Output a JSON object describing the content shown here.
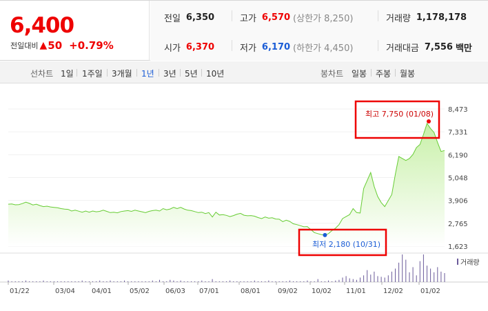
{
  "summary": {
    "current_price": "6,400",
    "prev_compare_label": "전일대비",
    "change_arrow": "▲",
    "change_value": "50",
    "change_pct": "+0.79%",
    "prev_close": {
      "label": "전일",
      "value": "6,350"
    },
    "high": {
      "label": "고가",
      "value": "6,570",
      "sub": "(상한가 8,250)"
    },
    "volume": {
      "label": "거래량",
      "value": "1,178,178"
    },
    "open": {
      "label": "시가",
      "value": "6,370"
    },
    "low": {
      "label": "저가",
      "value": "6,170",
      "sub": "(하한가 4,450)"
    },
    "amount": {
      "label": "거래대금",
      "value": "7,556",
      "unit": "백만"
    }
  },
  "period_bar": {
    "line_label": "선차트",
    "periods": [
      "1일",
      "1주일",
      "3개월",
      "1년",
      "3년",
      "5년",
      "10년"
    ],
    "selected": "1년",
    "candle_label": "봉차트",
    "candles": [
      "일봉",
      "주봉",
      "월봉"
    ]
  },
  "colors": {
    "up": "#e00000",
    "down": "#1a5cd6",
    "line": "#66cc33",
    "fill_top": "#c8f0a8",
    "volume_bar": "#6a5a9a",
    "annotation_box": "#e00000"
  },
  "chart_data": {
    "type": "area",
    "y_ticks": [
      "8,473",
      "7,331",
      "6,190",
      "5,048",
      "3,906",
      "2,765",
      "1,623"
    ],
    "ylim": [
      1623,
      8473
    ],
    "x_ticks": [
      "01/22",
      "03/04",
      "04/01",
      "05/02",
      "06/03",
      "07/01",
      "08/01",
      "09/02",
      "10/02",
      "11/01",
      "12/02",
      "01/02"
    ],
    "series": [
      {
        "values": [
          3720,
          3730,
          3690,
          3700,
          3750,
          3820,
          3760,
          3680,
          3720,
          3650,
          3600,
          3620,
          3580,
          3560,
          3540,
          3500,
          3470,
          3460,
          3380,
          3420,
          3370,
          3320,
          3380,
          3320,
          3380,
          3340,
          3360,
          3420,
          3360,
          3300,
          3320,
          3290,
          3350,
          3380,
          3400,
          3360,
          3420,
          3380,
          3340,
          3300,
          3360,
          3400,
          3420,
          3380,
          3500,
          3440,
          3480,
          3560,
          3500,
          3560,
          3480,
          3420,
          3400,
          3350,
          3300,
          3320,
          3250,
          3300,
          3080,
          3320,
          3180,
          3200,
          3160,
          3100,
          3150,
          3220,
          3260,
          3170,
          3140,
          3150,
          3120,
          3050,
          3000,
          3080,
          3020,
          3040,
          2980,
          2970,
          2850,
          2920,
          2860,
          2740,
          2700,
          2650,
          2590,
          2600,
          2450,
          2300,
          2250,
          2200,
          2180,
          2250,
          2400,
          2520,
          2700,
          3000,
          3100,
          3200,
          3500,
          3300,
          3280,
          4500,
          4900,
          5300,
          4600,
          4100,
          3800,
          3600,
          3900,
          4200,
          5200,
          6100,
          6000,
          5900,
          6000,
          6200,
          6550,
          6700,
          7200,
          7750,
          7500,
          7300,
          6800,
          6350,
          6400
        ]
      }
    ],
    "max_label": "최고 7,750 (01/08)",
    "min_label": "최저 2,180 (10/31)",
    "volume_label": "거래량",
    "volume_values": [
      2,
      1,
      1,
      1,
      1,
      2,
      1,
      1,
      1,
      1,
      2,
      1,
      1,
      1,
      1,
      1,
      1,
      1,
      1,
      1,
      1,
      2,
      1,
      1,
      1,
      1,
      2,
      1,
      1,
      2,
      1,
      1,
      1,
      2,
      1,
      1,
      1,
      1,
      1,
      1,
      1,
      2,
      1,
      3,
      1,
      1,
      3,
      2,
      1,
      2,
      1,
      1,
      1,
      1,
      1,
      2,
      1,
      1,
      4,
      1,
      1,
      1,
      1,
      2,
      1,
      1,
      1,
      1,
      1,
      1,
      2,
      1,
      1,
      1,
      2,
      1,
      1,
      1,
      1,
      1,
      2,
      1,
      1,
      1,
      1,
      2,
      1,
      1,
      4,
      1,
      1,
      2,
      1,
      2,
      3,
      6,
      8,
      5,
      4,
      3,
      6,
      9,
      16,
      10,
      14,
      8,
      7,
      6,
      9,
      14,
      18,
      26,
      37,
      30,
      13,
      20,
      9,
      28,
      37,
      22,
      18,
      13,
      20,
      14,
      12
    ]
  }
}
